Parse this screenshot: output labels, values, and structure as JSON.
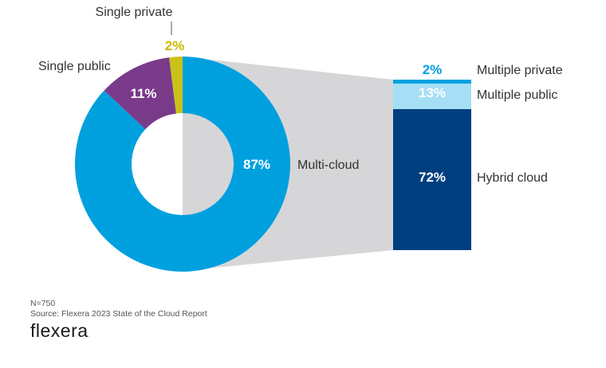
{
  "chart_data": [
    {
      "type": "pie",
      "title": "",
      "categories": [
        "Multi-cloud",
        "Single public",
        "Single private"
      ],
      "values": [
        87,
        11,
        2
      ],
      "value_labels": [
        "87%",
        "11%",
        "2%"
      ],
      "colors": [
        "#00a0df",
        "#7a3a8a",
        "#c9c21a"
      ]
    },
    {
      "type": "bar",
      "stacked": true,
      "title": "",
      "categories": [
        "Hybrid cloud",
        "Multiple public",
        "Multiple private"
      ],
      "values": [
        72,
        13,
        2
      ],
      "value_labels": [
        "72%",
        "13%",
        "2%"
      ],
      "colors": [
        "#003f7f",
        "#a6dff5",
        "#00a0df"
      ]
    }
  ],
  "footer": {
    "n": "N=750",
    "source": "Source: Flexera 2023 State of the Cloud Report",
    "brand": "flexera"
  }
}
